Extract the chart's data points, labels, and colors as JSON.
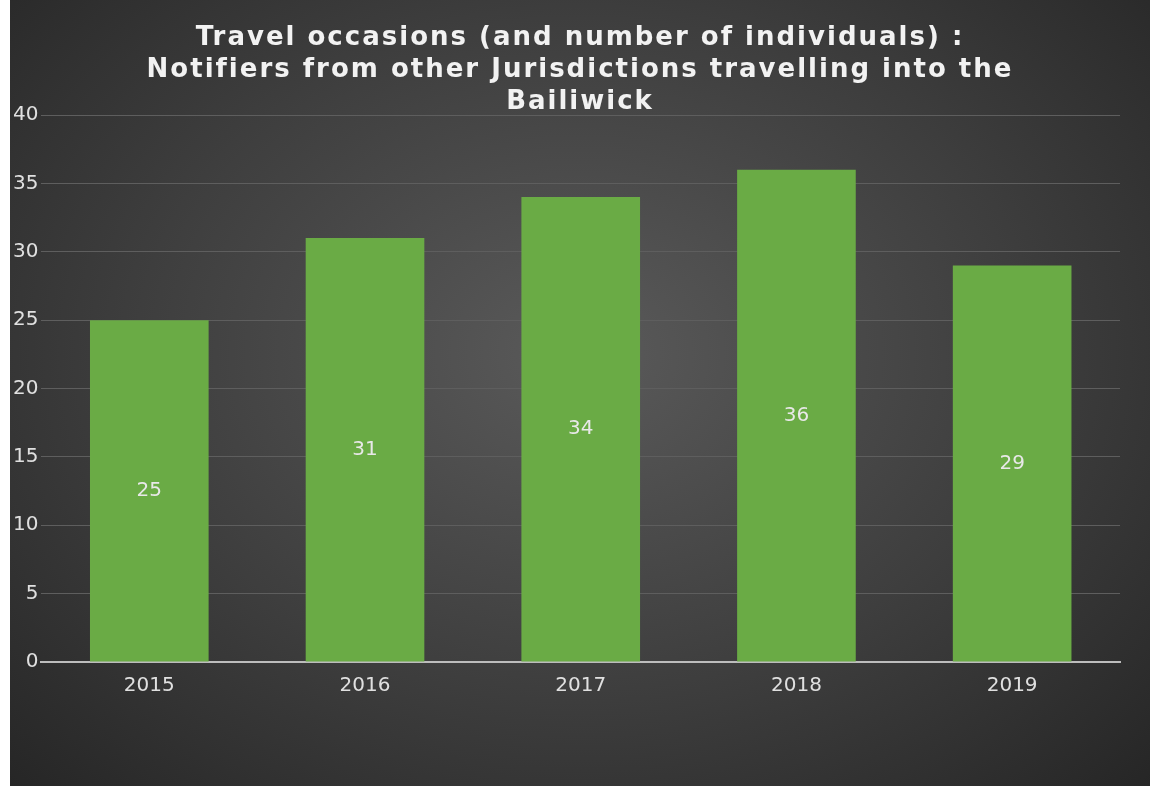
{
  "chart_data": {
    "type": "bar",
    "title": "Travel occasions (and number of individuals) : Notifiers from other Jurisdictions travelling into the Bailiwick",
    "categories": [
      "2015",
      "2016",
      "2017",
      "2018",
      "2019"
    ],
    "values": [
      25,
      31,
      34,
      36,
      29
    ],
    "color": "#6aab45",
    "ylim": [
      0,
      40
    ],
    "yticks": [
      0,
      5,
      10,
      15,
      20,
      25,
      30,
      35,
      40
    ],
    "grid": "y",
    "data_labels": true,
    "legend": false
  }
}
